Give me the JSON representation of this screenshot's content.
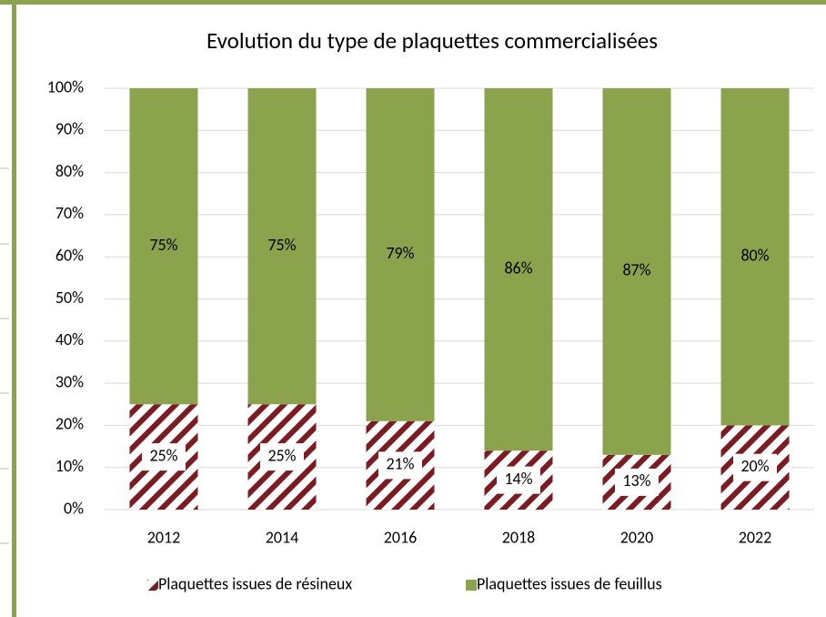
{
  "chart_data": {
    "type": "stacked_bar",
    "title": "Evolution du type de plaquettes commercialisées",
    "categories": [
      "2012",
      "2014",
      "2016",
      "2018",
      "2020",
      "2022"
    ],
    "series": [
      {
        "name": "Plaquettes issues de résineux",
        "color": "#7a1c22",
        "hatched": true,
        "values": [
          25,
          25,
          21,
          14,
          13,
          20
        ],
        "value_labels": [
          "25%",
          "25%",
          "21%",
          "14%",
          "13%",
          "20%"
        ]
      },
      {
        "name": "Plaquettes issues de feuillus",
        "color": "#8aa34c",
        "hatched": false,
        "values": [
          75,
          75,
          79,
          86,
          87,
          80
        ],
        "value_labels": [
          "75%",
          "75%",
          "79%",
          "86%",
          "87%",
          "80%"
        ]
      }
    ],
    "ylim": [
      0,
      100
    ],
    "yticks": [
      {
        "value": 0,
        "label": "0%"
      },
      {
        "value": 10,
        "label": "10%"
      },
      {
        "value": 20,
        "label": "20%"
      },
      {
        "value": 30,
        "label": "30%"
      },
      {
        "value": 40,
        "label": "40%"
      },
      {
        "value": 50,
        "label": "50%"
      },
      {
        "value": 60,
        "label": "60%"
      },
      {
        "value": 70,
        "label": "70%"
      },
      {
        "value": 80,
        "label": "80%"
      },
      {
        "value": 90,
        "label": "90%"
      },
      {
        "value": 100,
        "label": "100%"
      }
    ],
    "grid": true,
    "legend": "bottom"
  }
}
